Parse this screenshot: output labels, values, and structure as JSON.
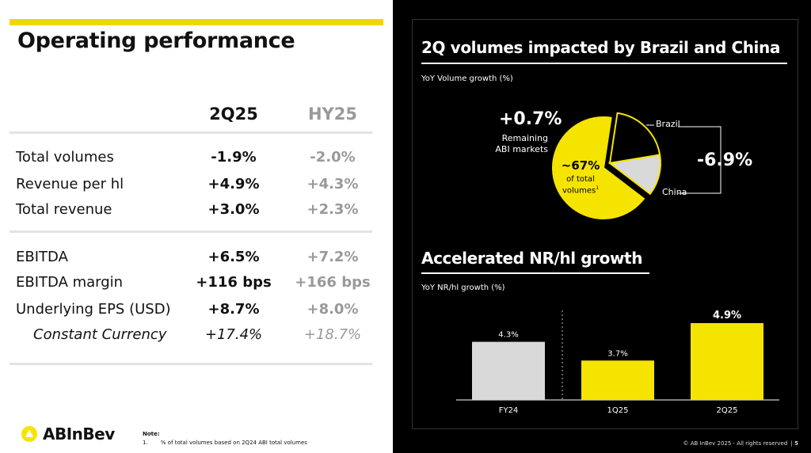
{
  "colors": {
    "gold": "#f2d600",
    "gray_bar": "#d9d9d9",
    "accent_yellow": "#f5e400"
  },
  "left": {
    "title": "Operating performance",
    "col1": "2Q25",
    "col2": "HY25",
    "rows": [
      {
        "label": "Total volumes",
        "v1": "-1.9%",
        "v2": "-2.0%"
      },
      {
        "label": "Revenue per hl",
        "v1": "+4.9%",
        "v2": "+4.3%"
      },
      {
        "label": "Total revenue",
        "v1": "+3.0%",
        "v2": "+2.3%"
      },
      {
        "label": "EBITDA",
        "v1": "+6.5%",
        "v2": "+7.2%"
      },
      {
        "label": "EBITDA margin",
        "v1": "+116 bps",
        "v2": "+166 bps"
      },
      {
        "label": "Underlying EPS (USD)",
        "v1": "+8.7%",
        "v2": "+8.0%"
      },
      {
        "label": "Constant Currency",
        "v1": "+17.4%",
        "v2": "+18.7%"
      }
    ],
    "logo_text": "ABInBev",
    "note_title": "Note:",
    "note_num": "1.",
    "note_text": "% of total volumes based on 2Q24 ABI total volumes"
  },
  "right": {
    "title1": "2Q volumes impacted by Brazil and China",
    "sub1": "YoY Volume growth (%)",
    "pie": {
      "remaining_value": "+0.7%",
      "remaining_label1": "Remaining",
      "remaining_label2": "ABI markets",
      "share_value": "~67%",
      "share_label1": "of total",
      "share_label2": "volumes",
      "share_sup": "1",
      "brazil_label": "Brazil",
      "china_label": "China",
      "bc_value": "-6.9%",
      "slices": [
        {
          "name": "Remaining ABI markets",
          "share": 67
        },
        {
          "name": "Brazil",
          "share": 20
        },
        {
          "name": "China",
          "share": 13
        }
      ]
    },
    "title2": "Accelerated NR/hl growth",
    "sub2": "YoY NR/hl growth (%)",
    "footer": "© AB InBev 2025 - All rights reserved",
    "page_num": "5"
  },
  "chart_data": {
    "type": "bar",
    "categories": [
      "FY24",
      "1Q25",
      "2Q25"
    ],
    "values": [
      4.3,
      3.7,
      4.9
    ],
    "labels": [
      "4.3%",
      "3.7%",
      "4.9%"
    ],
    "colors": [
      "#d9d9d9",
      "#f5e400",
      "#f5e400"
    ],
    "title": "Accelerated NR/hl growth",
    "ylabel": "YoY NR/hl growth (%)",
    "ylim": [
      0,
      5
    ]
  }
}
